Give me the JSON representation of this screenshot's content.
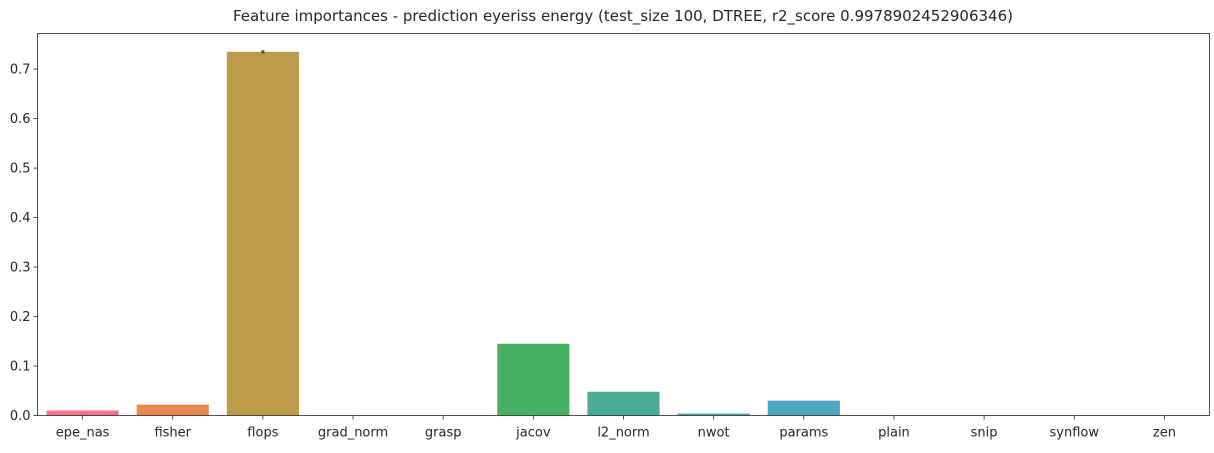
{
  "chart_data": {
    "type": "bar",
    "title": "Feature importances - prediction eyeriss energy (test_size 100, DTREE, r2_score 0.9978902452906346)",
    "xlabel": "",
    "ylabel": "",
    "categories": [
      "epe_nas",
      "fisher",
      "flops",
      "grad_norm",
      "grasp",
      "jacov",
      "l2_norm",
      "nwot",
      "params",
      "plain",
      "snip",
      "synflow",
      "zen"
    ],
    "values": [
      0.01,
      0.022,
      0.735,
      0.0,
      0.0,
      0.145,
      0.048,
      0.004,
      0.03,
      0.0,
      0.0,
      0.0,
      0.0
    ],
    "error": [
      0.0,
      0.0,
      0.003,
      0.0,
      0.0,
      0.0,
      0.0,
      0.0,
      0.0,
      0.0,
      0.0,
      0.0,
      0.0
    ],
    "colors": [
      "#f77189",
      "#e7894f",
      "#bb9b48",
      "#a1a448",
      "#7aad48",
      "#48b161",
      "#4aac97",
      "#4ba8aa",
      "#4ea5bf",
      "#5a9ee0",
      "#a38cf4",
      "#e076e9",
      "#f36ac1"
    ],
    "yticks": [
      0.0,
      0.1,
      0.2,
      0.3,
      0.4,
      0.5,
      0.6,
      0.7
    ],
    "ytick_labels": [
      "0.0",
      "0.1",
      "0.2",
      "0.3",
      "0.4",
      "0.5",
      "0.6",
      "0.7"
    ],
    "ylim": [
      0,
      0.772
    ],
    "grid": false,
    "legend": "none"
  }
}
